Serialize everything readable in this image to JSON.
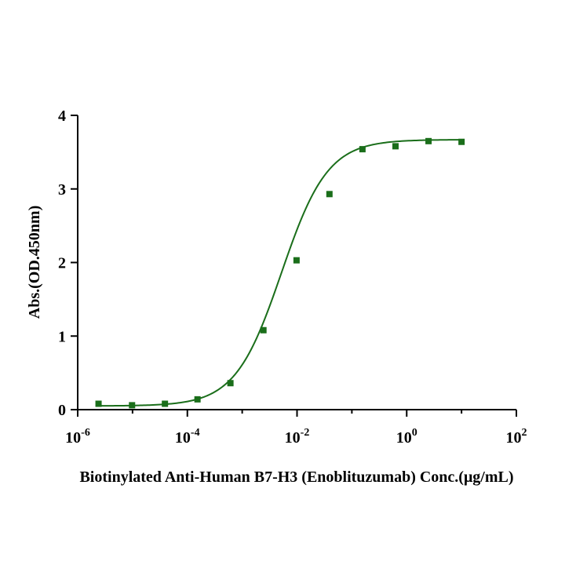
{
  "chart_data": {
    "type": "scatter",
    "xlabel": "Biotinylated Anti-Human B7-H3 (Enoblituzumab) Conc.(μg/mL)",
    "ylabel": "Abs.(OD.450nm)",
    "x_scale": "log",
    "xlim": [
      1e-06,
      100
    ],
    "ylim": [
      0,
      4
    ],
    "x_ticks": [
      {
        "base": "10",
        "exp": "-6",
        "value": 1e-06
      },
      {
        "base": "10",
        "exp": "-4",
        "value": 0.0001
      },
      {
        "base": "10",
        "exp": "-2",
        "value": 0.01
      },
      {
        "base": "10",
        "exp": "0",
        "value": 1
      },
      {
        "base": "10",
        "exp": "2",
        "value": 100
      }
    ],
    "y_ticks": [
      "0",
      "1",
      "2",
      "3",
      "4"
    ],
    "grid": false,
    "marker_color": "#1a6e1a",
    "line_color": "#1a6e1a",
    "series": [
      {
        "x": [
          2.4e-06,
          9.8e-06,
          3.9e-05,
          0.000153,
          0.00061,
          0.00244,
          0.0098,
          0.039,
          0.156,
          0.625,
          2.5,
          10
        ],
        "y": [
          0.08,
          0.06,
          0.08,
          0.14,
          0.36,
          1.08,
          2.03,
          2.93,
          3.54,
          3.58,
          3.65,
          3.64
        ],
        "fit": "sigmoid"
      }
    ]
  }
}
